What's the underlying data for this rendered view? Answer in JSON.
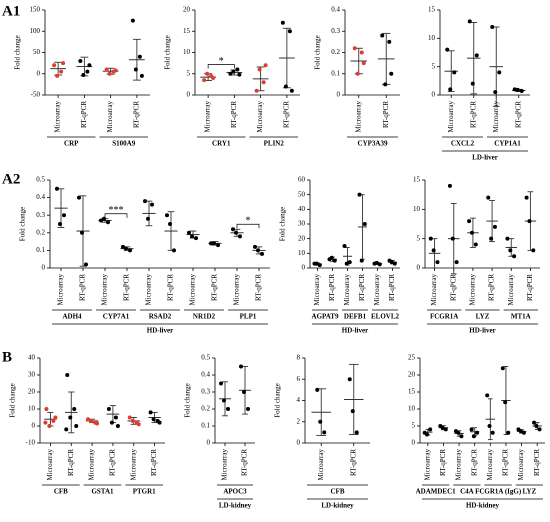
{
  "panel_labels": [
    "A1",
    "A2",
    "B"
  ],
  "chart_data": [
    {
      "type": "strip",
      "ylabel": "Fold change",
      "ylim": [
        -50,
        150
      ],
      "yticks": [
        -50,
        0,
        50,
        100,
        150
      ],
      "categories": [
        "Microarray",
        "RT-qPCR"
      ],
      "colors": [
        "#e03c31",
        "#000000"
      ],
      "groups": [
        {
          "label": "CRP",
          "items": [
            {
              "points": [
                20,
                5,
                -5,
                25
              ],
              "mean": 12,
              "sd": 15
            },
            {
              "points": [
                30,
                5,
                -3,
                20
              ],
              "mean": 17,
              "sd": 22
            }
          ]
        },
        {
          "label": "S100A9",
          "items": [
            {
              "points": [
                10,
                5,
                0,
                8
              ],
              "mean": 6,
              "sd": 7
            },
            {
              "points": [
                125,
                40,
                10,
                -5
              ],
              "mean": 33,
              "sd": 48
            }
          ]
        }
      ]
    },
    {
      "type": "strip",
      "ylabel": "Fold change",
      "ylim": [
        0,
        20
      ],
      "yticks": [
        0,
        5,
        10,
        15,
        20
      ],
      "categories": [
        "Microarray",
        "RT-qPCR"
      ],
      "colors": [
        "#e03c31",
        "#000000"
      ],
      "groups": [
        {
          "label": "CRY1",
          "annotation": "*",
          "items": [
            {
              "points": [
                3.5,
                4.5,
                5,
                4
              ],
              "mean": 4.2,
              "sd": 0.8
            },
            {
              "points": [
                5,
                6,
                5.5,
                4.8
              ],
              "mean": 5.3,
              "sd": 0.6
            }
          ]
        },
        {
          "label": "PLIN2",
          "items": [
            {
              "points": [
                1,
                3,
                6,
                7
              ],
              "mean": 3.8,
              "sd": 2.8
            },
            {
              "points": [
                17,
                15,
                2,
                1
              ],
              "mean": 8.7,
              "sd": 7
            }
          ]
        }
      ]
    },
    {
      "type": "strip",
      "ylabel": "Fold change",
      "ylim": [
        0,
        0.4
      ],
      "yticks": [
        0,
        0.1,
        0.2,
        0.3,
        0.4
      ],
      "categories": [
        "Microarray",
        "RT-qPCR"
      ],
      "colors": [
        "#e03c31",
        "#000000"
      ],
      "groups": [
        {
          "label": "CYP3A39",
          "items": [
            {
              "points": [
                0.22,
                0.2,
                0.1,
                0.15
              ],
              "mean": 0.16,
              "sd": 0.06
            },
            {
              "points": [
                0.28,
                0.25,
                0.05,
                0.1
              ],
              "mean": 0.17,
              "sd": 0.12
            }
          ]
        }
      ]
    },
    {
      "type": "strip",
      "ylim": [
        0,
        15
      ],
      "yticks": [
        0,
        5,
        10,
        15
      ],
      "categories": [
        "Microarray",
        "RT-qPCR"
      ],
      "colors": [
        "#000000",
        "#000000"
      ],
      "caption": "LD-liver",
      "groups": [
        {
          "label": "CXCL2",
          "items": [
            {
              "points": [
                8,
                4,
                1
              ],
              "mean": 4.2,
              "sd": 3.6
            },
            {
              "points": [
                13,
                7,
                2
              ],
              "mean": 6.5,
              "sd": 6.3
            }
          ]
        },
        {
          "label": "CYP1A1",
          "items": [
            {
              "points": [
                12,
                4,
                0.5
              ],
              "mean": 5,
              "sd": 7
            },
            {
              "points": [
                1,
                0.7,
                0.9
              ],
              "mean": 0.8,
              "sd": 0.2
            }
          ]
        }
      ]
    },
    {
      "type": "strip",
      "ylabel": "Fold change",
      "ylim": [
        0,
        0.5
      ],
      "yticks": [
        0,
        0.1,
        0.2,
        0.3,
        0.4,
        0.5
      ],
      "categories": [
        "Microarray",
        "RT-qPCR"
      ],
      "colors": [
        "#000000",
        "#000000"
      ],
      "caption": "HD-liver",
      "groups": [
        {
          "label": "ADH4",
          "items": [
            {
              "points": [
                0.45,
                0.3,
                0.25
              ],
              "mean": 0.34,
              "sd": 0.11
            },
            {
              "points": [
                0.4,
                0.02,
                0.2
              ],
              "mean": 0.21,
              "sd": 0.2
            }
          ]
        },
        {
          "label": "CYP7A1",
          "annotation": "***",
          "items": [
            {
              "points": [
                0.27,
                0.26,
                0.28
              ],
              "mean": 0.27,
              "sd": 0.01
            },
            {
              "points": [
                0.12,
                0.1,
                0.11
              ],
              "mean": 0.11,
              "sd": 0.01
            }
          ]
        },
        {
          "label": "RSAD2",
          "items": [
            {
              "points": [
                0.38,
                0.36,
                0.28
              ],
              "mean": 0.31,
              "sd": 0.07
            },
            {
              "points": [
                0.3,
                0.1,
                0.25
              ],
              "mean": 0.21,
              "sd": 0.11
            }
          ]
        },
        {
          "label": "NR1D2",
          "items": [
            {
              "points": [
                0.2,
                0.17,
                0.18
              ],
              "mean": 0.19,
              "sd": 0.02
            },
            {
              "points": [
                0.14,
                0.13,
                0.14
              ],
              "mean": 0.14,
              "sd": 0.01
            }
          ]
        },
        {
          "label": "PLP1",
          "annotation": "*",
          "items": [
            {
              "points": [
                0.22,
                0.18,
                0.2
              ],
              "mean": 0.2,
              "sd": 0.02
            },
            {
              "points": [
                0.12,
                0.08,
                0.1
              ],
              "mean": 0.1,
              "sd": 0.02
            }
          ]
        }
      ]
    },
    {
      "type": "strip",
      "ylabel": "Fold change",
      "ylim": [
        0,
        60
      ],
      "yticks": [
        0,
        10,
        20,
        30,
        40,
        50,
        60
      ],
      "categories": [
        "Microarray",
        "RT-qPCR"
      ],
      "colors": [
        "#000000",
        "#000000"
      ],
      "caption": "HD-liver",
      "groups": [
        {
          "label": "AGPAT9",
          "items": [
            {
              "points": [
                3,
                2,
                3
              ],
              "mean": 2.7,
              "sd": 0.8
            },
            {
              "points": [
                6,
                5,
                7
              ],
              "mean": 6,
              "sd": 1.5
            }
          ]
        },
        {
          "label": "DEFB1",
          "items": [
            {
              "points": [
                15,
                4,
                3
              ],
              "mean": 8,
              "sd": 6
            },
            {
              "points": [
                50,
                30,
                5
              ],
              "mean": 28,
              "sd": 22
            }
          ]
        },
        {
          "label": "ELOVL2",
          "items": [
            {
              "points": [
                3,
                2.5,
                3.5
              ],
              "mean": 3,
              "sd": 0.5
            },
            {
              "points": [
                5,
                3,
                4
              ],
              "mean": 4,
              "sd": 1.2
            }
          ]
        }
      ]
    },
    {
      "type": "strip",
      "ylim": [
        0,
        15
      ],
      "yticks": [
        0,
        5,
        10,
        15
      ],
      "categories": [
        "Microarray",
        "RT-qPCR"
      ],
      "colors": [
        "#000000",
        "#000000"
      ],
      "caption": "HD-liver",
      "groups": [
        {
          "label": "FCGR1A",
          "items": [
            {
              "points": [
                5,
                1,
                3
              ],
              "mean": 2.5,
              "sd": 2.5
            },
            {
              "points": [
                14,
                1,
                5
              ],
              "mean": 5,
              "sd": 6
            }
          ]
        },
        {
          "label": "LYZ",
          "items": [
            {
              "points": [
                8,
                4,
                6
              ],
              "mean": 6,
              "sd": 2.5
            },
            {
              "points": [
                12,
                7,
                5
              ],
              "mean": 8,
              "sd": 3.5
            }
          ]
        },
        {
          "label": "MT1A",
          "items": [
            {
              "points": [
                5,
                2,
                3
              ],
              "mean": 3.5,
              "sd": 1.5
            },
            {
              "points": [
                12,
                3,
                8
              ],
              "mean": 8,
              "sd": 5
            }
          ]
        }
      ]
    },
    {
      "type": "strip",
      "ylabel": "Fold change",
      "ylim": [
        -10,
        40
      ],
      "yticks": [
        -10,
        0,
        10,
        20,
        30,
        40
      ],
      "categories": [
        "Microarray",
        "RT-qPCR"
      ],
      "colors": [
        "#e03c31",
        "#000000"
      ],
      "groups": [
        {
          "label": "CFB",
          "items": [
            {
              "points": [
                10,
                3,
                0,
                5,
                2
              ],
              "mean": 4,
              "sd": 4
            },
            {
              "points": [
                30,
                10,
                5,
                0,
                -2
              ],
              "mean": 8,
              "sd": 12
            }
          ]
        },
        {
          "label": "GSTA1",
          "items": [
            {
              "points": [
                4,
                2,
                3,
                1.5
              ],
              "mean": 3,
              "sd": 1
            },
            {
              "points": [
                10,
                5,
                2,
                0
              ],
              "mean": 7,
              "sd": 5
            }
          ]
        },
        {
          "label": "PTGR1",
          "items": [
            {
              "points": [
                5,
                2,
                3,
                1
              ],
              "mean": 3,
              "sd": 2
            },
            {
              "points": [
                8,
                3,
                4,
                2
              ],
              "mean": 5,
              "sd": 3
            }
          ]
        }
      ]
    },
    {
      "type": "strip",
      "ylabel": "Fold change",
      "ylim": [
        0,
        0.5
      ],
      "yticks": [
        0,
        0.1,
        0.2,
        0.3,
        0.4,
        0.5
      ],
      "categories": [
        "Microarray",
        "RT-qPCR"
      ],
      "colors": [
        "#000000",
        "#000000"
      ],
      "caption": "LD-kidney",
      "groups": [
        {
          "label": "APOC3",
          "items": [
            {
              "points": [
                0.35,
                0.2,
                0.25
              ],
              "mean": 0.26,
              "sd": 0.1
            },
            {
              "points": [
                0.45,
                0.2,
                0.3
              ],
              "mean": 0.31,
              "sd": 0.14
            }
          ]
        }
      ]
    },
    {
      "type": "strip",
      "ylabel": "Fold change",
      "ylim": [
        0,
        8
      ],
      "yticks": [
        0,
        2,
        4,
        6,
        8
      ],
      "categories": [
        "Microarray",
        "RT-qPCR"
      ],
      "colors": [
        "#000000",
        "#000000"
      ],
      "caption": "LD-kidney",
      "groups": [
        {
          "label": "CFB",
          "items": [
            {
              "points": [
                5,
                1,
                2
              ],
              "mean": 2.9,
              "sd": 2.2
            },
            {
              "points": [
                6,
                1,
                3
              ],
              "mean": 4.1,
              "sd": 3.3
            }
          ]
        }
      ]
    },
    {
      "type": "strip",
      "ylim": [
        0,
        25
      ],
      "yticks": [
        0,
        5,
        10,
        15,
        20,
        25
      ],
      "categories": [
        "Microarray",
        "RT-qPCR"
      ],
      "colors": [
        "#000000",
        "#000000"
      ],
      "caption": "HD-kidney",
      "groups": [
        {
          "label": "ADAMDEC1",
          "items": [
            {
              "points": [
                3,
                4,
                2.5
              ],
              "mean": 3.2,
              "sd": 0.8
            },
            {
              "points": [
                5,
                4,
                4.5
              ],
              "mean": 4.5,
              "sd": 0.6
            }
          ]
        },
        {
          "label": "C4A",
          "items": [
            {
              "points": [
                3.5,
                2,
                3
              ],
              "mean": 2.8,
              "sd": 0.8
            },
            {
              "points": [
                4,
                3,
                2
              ],
              "mean": 3.3,
              "sd": 1.2
            }
          ]
        },
        {
          "label": "FCGR1A (IgG)",
          "items": [
            {
              "points": [
                14,
                3,
                5
              ],
              "mean": 7,
              "sd": 6
            },
            {
              "points": [
                22,
                3,
                12
              ],
              "mean": 12.5,
              "sd": 10
            }
          ]
        },
        {
          "label": "LYZ",
          "items": [
            {
              "points": [
                4,
                3,
                3.5
              ],
              "mean": 3.4,
              "sd": 0.5
            },
            {
              "points": [
                6,
                4,
                5
              ],
              "mean": 5,
              "sd": 1
            }
          ]
        }
      ]
    }
  ]
}
